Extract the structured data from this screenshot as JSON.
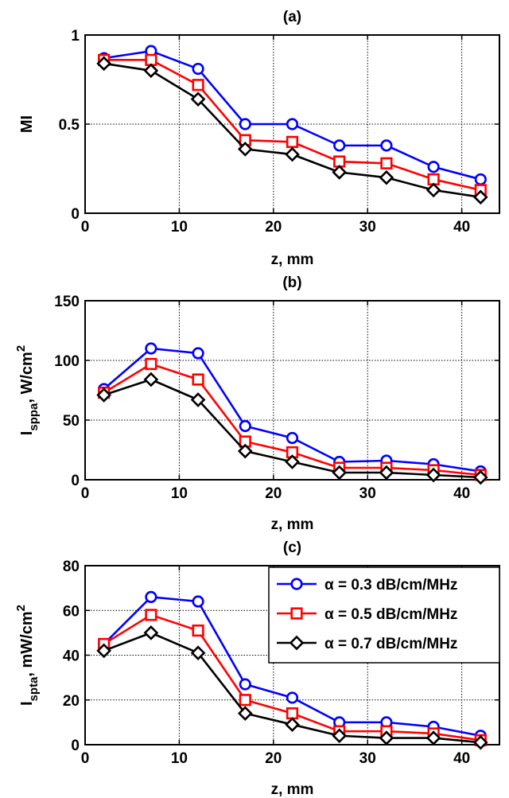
{
  "chart_data": [
    {
      "type": "line",
      "title": "(a)",
      "xlabel": "z, mm",
      "ylabel": {
        "main": "MI",
        "sub": "",
        "suffix": "",
        "sup": ""
      },
      "xlim": [
        0,
        44
      ],
      "ylim": [
        0,
        1
      ],
      "xticks": [
        0,
        10,
        20,
        30,
        40
      ],
      "yticks": [
        0,
        0.5,
        1
      ],
      "ytick_labels": [
        "0",
        "0.5",
        "1"
      ],
      "grid": true,
      "x": [
        2,
        7,
        12,
        17,
        22,
        27,
        32,
        37,
        42
      ],
      "series": [
        {
          "name": "α = 0.3 dB/cm/MHz",
          "color": "#0000ff",
          "marker": "circle",
          "values": [
            0.87,
            0.91,
            0.81,
            0.5,
            0.5,
            0.38,
            0.38,
            0.26,
            0.19
          ]
        },
        {
          "name": "α = 0.5 dB/cm/MHz",
          "color": "#ff0000",
          "marker": "square",
          "values": [
            0.86,
            0.86,
            0.72,
            0.41,
            0.4,
            0.29,
            0.28,
            0.19,
            0.13
          ]
        },
        {
          "name": "α = 0.7 dB/cm/MHz",
          "color": "#000000",
          "marker": "diamond",
          "values": [
            0.84,
            0.8,
            0.64,
            0.36,
            0.33,
            0.23,
            0.2,
            0.13,
            0.09
          ]
        }
      ]
    },
    {
      "type": "line",
      "title": "(b)",
      "xlabel": "z, mm",
      "ylabel": {
        "main": "I",
        "sub": "sppa",
        "suffix": ", W/cm",
        "sup": "2"
      },
      "xlim": [
        0,
        44
      ],
      "ylim": [
        0,
        150
      ],
      "xticks": [
        0,
        10,
        20,
        30,
        40
      ],
      "yticks": [
        0,
        50,
        100,
        150
      ],
      "ytick_labels": [
        "0",
        "50",
        "100",
        "150"
      ],
      "grid": true,
      "x": [
        2,
        7,
        12,
        17,
        22,
        27,
        32,
        37,
        42
      ],
      "series": [
        {
          "name": "α = 0.3 dB/cm/MHz",
          "color": "#0000ff",
          "marker": "circle",
          "values": [
            76,
            110,
            106,
            45,
            35,
            15,
            16,
            13,
            7
          ]
        },
        {
          "name": "α = 0.5 dB/cm/MHz",
          "color": "#ff0000",
          "marker": "square",
          "values": [
            73,
            97,
            84,
            32,
            23,
            10,
            10,
            8,
            4
          ]
        },
        {
          "name": "α = 0.7 dB/cm/MHz",
          "color": "#000000",
          "marker": "diamond",
          "values": [
            71,
            84,
            67,
            24,
            15,
            6,
            6,
            4,
            2
          ]
        }
      ]
    },
    {
      "type": "line",
      "title": "(c)",
      "xlabel": "z, mm",
      "ylabel": {
        "main": "I",
        "sub": "spta",
        "suffix": ", mW/cm",
        "sup": "2"
      },
      "xlim": [
        0,
        44
      ],
      "ylim": [
        0,
        80
      ],
      "xticks": [
        0,
        10,
        20,
        30,
        40
      ],
      "yticks": [
        0,
        20,
        40,
        60,
        80
      ],
      "ytick_labels": [
        "0",
        "20",
        "40",
        "60",
        "80"
      ],
      "grid": true,
      "legend": "top-right",
      "x": [
        2,
        7,
        12,
        17,
        22,
        27,
        32,
        37,
        42
      ],
      "series": [
        {
          "name": "α = 0.3 dB/cm/MHz",
          "color": "#0000ff",
          "marker": "circle",
          "values": [
            45,
            66,
            64,
            27,
            21,
            10,
            10,
            8,
            4
          ]
        },
        {
          "name": "α = 0.5 dB/cm/MHz",
          "color": "#ff0000",
          "marker": "square",
          "values": [
            45,
            58,
            51,
            20,
            14,
            6,
            6,
            5,
            2
          ]
        },
        {
          "name": "α = 0.7 dB/cm/MHz",
          "color": "#000000",
          "marker": "diamond",
          "values": [
            42,
            50,
            41,
            14,
            9,
            4,
            3,
            3,
            1
          ]
        }
      ]
    }
  ]
}
